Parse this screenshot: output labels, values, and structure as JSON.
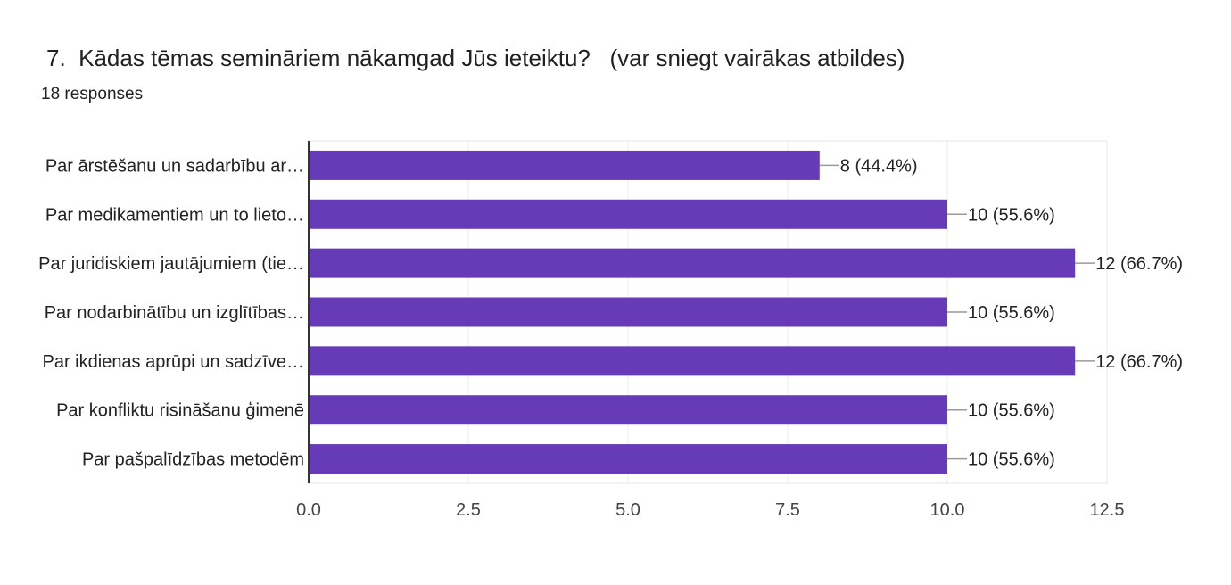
{
  "header": {
    "title": "7.  Kādas tēmas semināriem nākamgad Jūs ieteiktu?   (var sniegt vairākas atbildes)",
    "responses": "18 responses"
  },
  "chart_data": {
    "type": "bar",
    "orientation": "horizontal",
    "categories": [
      "Par ārstēšanu un sadarbību ar…",
      "Par medikamentiem un to lieto…",
      "Par juridiskiem jautājumiem (tie…",
      "Par nodarbinātību un izglītības…",
      "Par ikdienas aprūpi un sadzīve…",
      "Par konfliktu risināšanu ģimenē",
      "Par pašpalīdzības metodēm"
    ],
    "values": [
      8,
      10,
      12,
      10,
      12,
      10,
      10
    ],
    "data_labels": [
      "8 (44.4%)",
      "10 (55.6%)",
      "12 (66.7%)",
      "10 (55.6%)",
      "12 (66.7%)",
      "10 (55.6%)",
      "10 (55.6%)"
    ],
    "xlim": [
      0,
      12.5
    ],
    "xticks": [
      "0.0",
      "2.5",
      "5.0",
      "7.5",
      "10.0",
      "12.5"
    ],
    "grid": true,
    "bar_color": "#673ab7"
  }
}
